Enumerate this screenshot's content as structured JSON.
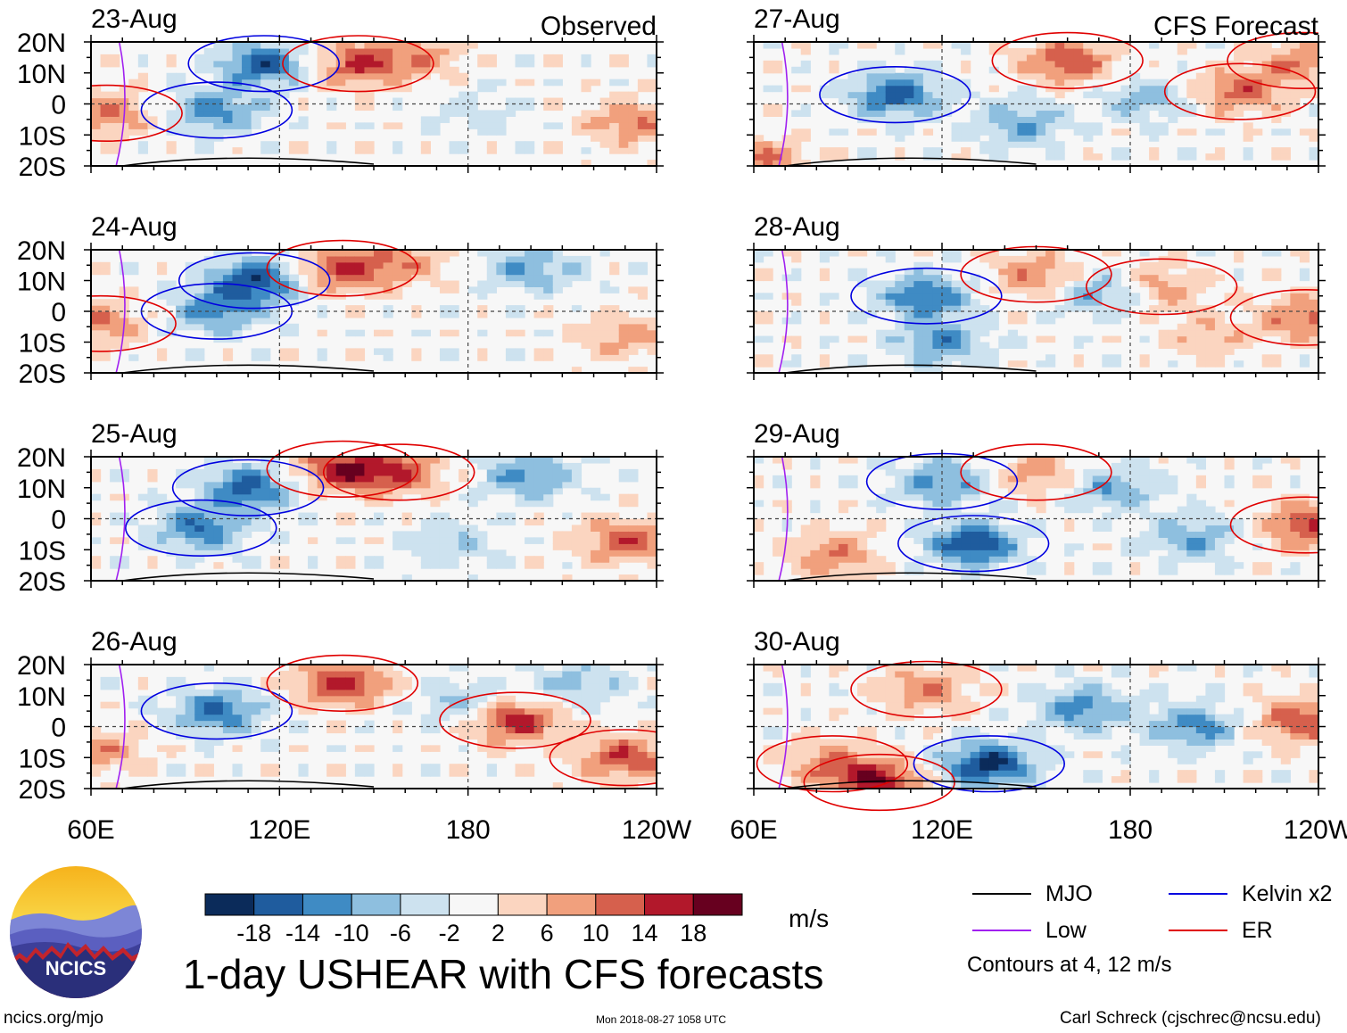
{
  "chart_data": {
    "type": "heatmap",
    "title": "1-day USHEAR with CFS forecasts",
    "variable": "USHEAR",
    "units": "m/s",
    "x_ticks": [
      "60E",
      "120E",
      "180",
      "120W"
    ],
    "x_tick_lons": [
      60,
      120,
      180,
      240
    ],
    "xlim": [
      60,
      240
    ],
    "y_ticks": [
      "20N",
      "10N",
      "0",
      "10S",
      "20S"
    ],
    "y_tick_lats": [
      20,
      10,
      0,
      -10,
      -20
    ],
    "ylim": [
      -20,
      20
    ],
    "columns": [
      {
        "header": "Observed",
        "panels": [
          {
            "date": "23-Aug",
            "max": [
              {
                "lon": 115,
                "lat": 13,
                "v": -16
              },
              {
                "lon": 145,
                "lat": 13,
                "v": 14
              },
              {
                "lon": 100,
                "lat": -2,
                "v": -12
              },
              {
                "lon": 65,
                "lat": -3,
                "v": 10
              },
              {
                "lon": 232,
                "lat": -6,
                "v": 10
              },
              {
                "lon": 165,
                "lat": 16,
                "v": 8
              },
              {
                "lon": 182,
                "lat": -3,
                "v": -4
              }
            ]
          },
          {
            "date": "24-Aug",
            "max": [
              {
                "lon": 112,
                "lat": 10,
                "v": -18
              },
              {
                "lon": 140,
                "lat": 14,
                "v": 14
              },
              {
                "lon": 100,
                "lat": 0,
                "v": -12
              },
              {
                "lon": 63,
                "lat": -4,
                "v": 10
              },
              {
                "lon": 160,
                "lat": 16,
                "v": 8
              },
              {
                "lon": 230,
                "lat": -8,
                "v": 8
              },
              {
                "lon": 200,
                "lat": 14,
                "v": -10
              }
            ]
          },
          {
            "date": "25-Aug",
            "max": [
              {
                "lon": 110,
                "lat": 10,
                "v": -16
              },
              {
                "lon": 95,
                "lat": -3,
                "v": -14
              },
              {
                "lon": 140,
                "lat": 16,
                "v": 16
              },
              {
                "lon": 158,
                "lat": 15,
                "v": 12
              },
              {
                "lon": 230,
                "lat": -7,
                "v": 12
              },
              {
                "lon": 200,
                "lat": 14,
                "v": -12
              },
              {
                "lon": 175,
                "lat": -8,
                "v": -6
              }
            ]
          },
          {
            "date": "26-Aug",
            "max": [
              {
                "lon": 100,
                "lat": 5,
                "v": -14
              },
              {
                "lon": 140,
                "lat": 14,
                "v": 16
              },
              {
                "lon": 195,
                "lat": 2,
                "v": 16
              },
              {
                "lon": 230,
                "lat": -10,
                "v": 14
              },
              {
                "lon": 178,
                "lat": 8,
                "v": -8
              },
              {
                "lon": 215,
                "lat": 14,
                "v": -8
              },
              {
                "lon": 64,
                "lat": -8,
                "v": 8
              }
            ]
          }
        ]
      },
      {
        "header": "CFS Forecast",
        "panels": [
          {
            "date": "27-Aug",
            "max": [
              {
                "lon": 105,
                "lat": 3,
                "v": -16
              },
              {
                "lon": 160,
                "lat": 14,
                "v": 14
              },
              {
                "lon": 215,
                "lat": 4,
                "v": 12
              },
              {
                "lon": 235,
                "lat": 14,
                "v": 10
              },
              {
                "lon": 145,
                "lat": -6,
                "v": -10
              },
              {
                "lon": 185,
                "lat": 2,
                "v": -8
              },
              {
                "lon": 62,
                "lat": -18,
                "v": 10
              }
            ]
          },
          {
            "date": "28-Aug",
            "max": [
              {
                "lon": 115,
                "lat": 5,
                "v": -14
              },
              {
                "lon": 150,
                "lat": 12,
                "v": 10
              },
              {
                "lon": 190,
                "lat": 8,
                "v": 8
              },
              {
                "lon": 236,
                "lat": -2,
                "v": 12
              },
              {
                "lon": 170,
                "lat": 6,
                "v": -10
              },
              {
                "lon": 120,
                "lat": -10,
                "v": -12
              },
              {
                "lon": 205,
                "lat": -8,
                "v": 6
              }
            ]
          },
          {
            "date": "29-Aug",
            "max": [
              {
                "lon": 130,
                "lat": -8,
                "v": -18
              },
              {
                "lon": 120,
                "lat": 12,
                "v": -12
              },
              {
                "lon": 150,
                "lat": 15,
                "v": 8
              },
              {
                "lon": 236,
                "lat": -2,
                "v": 14
              },
              {
                "lon": 85,
                "lat": -12,
                "v": 10
              },
              {
                "lon": 200,
                "lat": -6,
                "v": -10
              },
              {
                "lon": 175,
                "lat": 10,
                "v": -10
              }
            ]
          },
          {
            "date": "30-Aug",
            "max": [
              {
                "lon": 135,
                "lat": -12,
                "v": -20
              },
              {
                "lon": 100,
                "lat": -18,
                "v": 16
              },
              {
                "lon": 85,
                "lat": -12,
                "v": 10
              },
              {
                "lon": 115,
                "lat": 12,
                "v": 10
              },
              {
                "lon": 235,
                "lat": 2,
                "v": 14
              },
              {
                "lon": 200,
                "lat": 0,
                "v": -12
              },
              {
                "lon": 165,
                "lat": 6,
                "v": -12
              }
            ]
          }
        ]
      }
    ],
    "colorbar": {
      "boundaries": [
        -22,
        -18,
        -14,
        -10,
        -6,
        -2,
        2,
        6,
        10,
        14,
        18,
        22
      ],
      "labels": [
        "-18",
        "-14",
        "-10",
        "-6",
        "-2",
        "2",
        "6",
        "10",
        "14",
        "18"
      ],
      "colors": [
        "#0b2b5a",
        "#1f5c9e",
        "#3f8bc4",
        "#8ebfdf",
        "#cde2ef",
        "#f7f7f7",
        "#fbd5c0",
        "#f1a07d",
        "#d6604d",
        "#b2182b",
        "#67001f"
      ]
    },
    "contour_legend": [
      {
        "label": "MJO",
        "color": "#000000"
      },
      {
        "label": "Kelvin x2",
        "color": "#0000e0"
      },
      {
        "label": "Low",
        "color": "#a020f0"
      },
      {
        "label": "ER",
        "color": "#e00000"
      }
    ],
    "contours_note": "Contours at 4, 12 m/s"
  },
  "footer": {
    "left": "ncics.org/mjo",
    "timestamp": "Mon 2018-08-27 1058 UTC",
    "author": "Carl Schreck (cjschrec@ncsu.edu)"
  },
  "logo_text": "NCICS"
}
